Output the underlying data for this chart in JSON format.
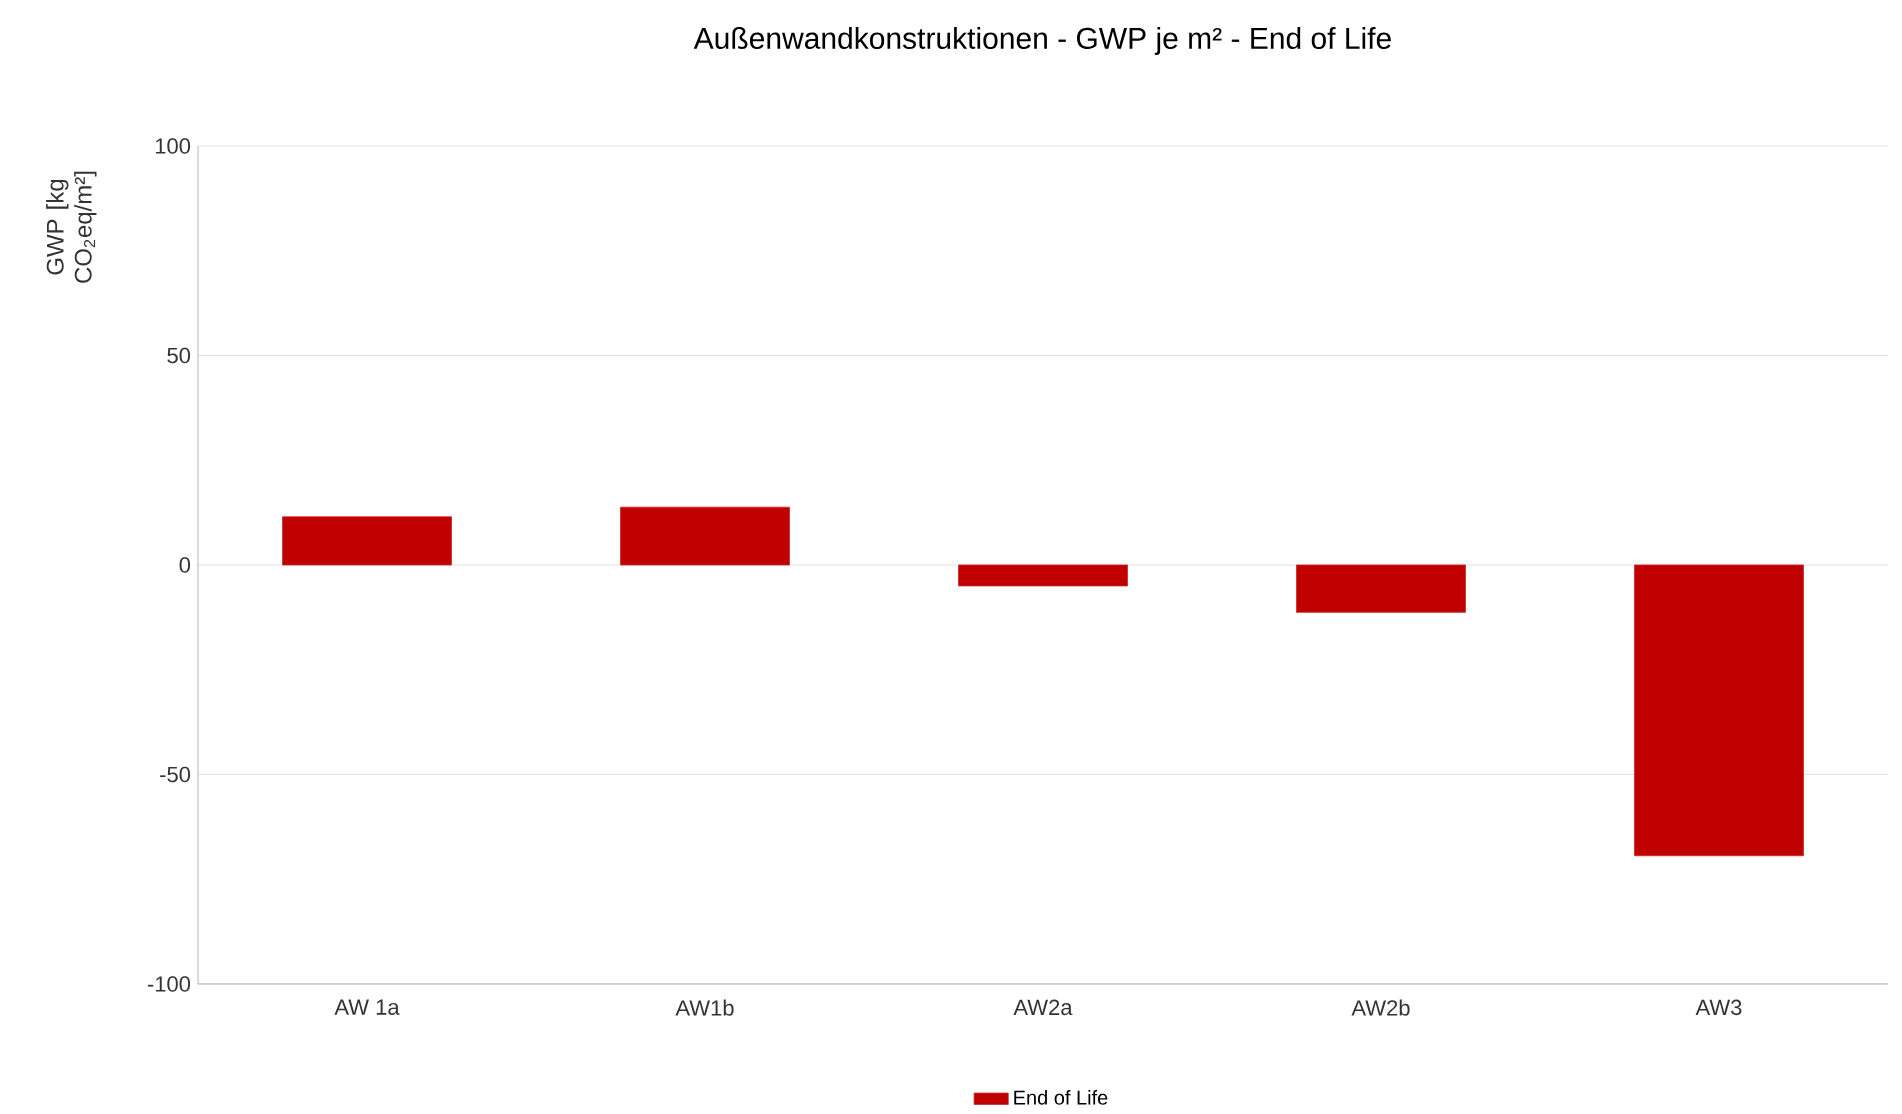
{
  "chart_data": {
    "type": "bar",
    "title": "Außenwandkonstruktionen - GWP je m² - End of Life",
    "ylabel": "GWP [kg CO$_{2}$eq/m²]",
    "categories": [
      "AW 1a",
      "AW1b",
      "AW2a",
      "AW2b",
      "AW3"
    ],
    "series": [
      {
        "name": "End of Life",
        "color": "#c00000",
        "values": [
          11.5,
          13.8,
          -5,
          -11.3,
          -69.4
        ]
      }
    ],
    "ylim": [
      -100,
      100
    ],
    "yticks": [
      -100,
      -50,
      0,
      50,
      100
    ],
    "grid": "y",
    "legend": "bottom"
  }
}
